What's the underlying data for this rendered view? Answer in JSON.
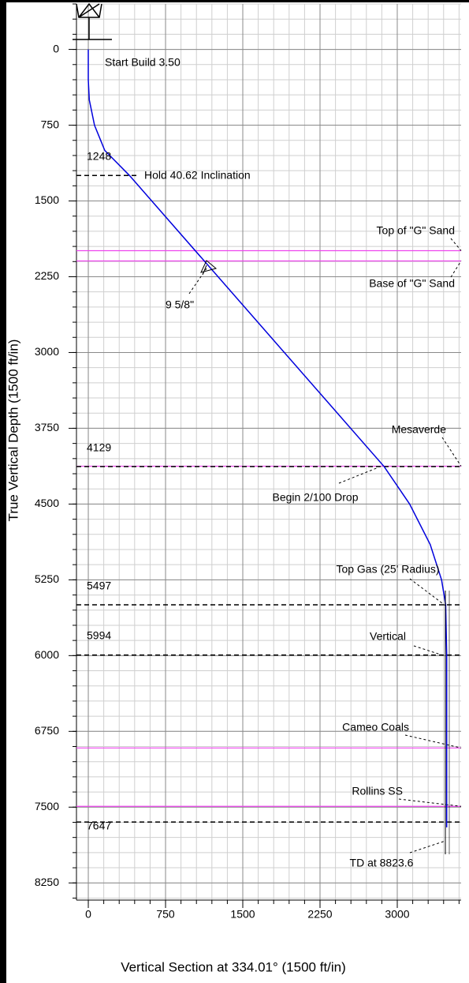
{
  "chart_data": {
    "type": "line",
    "xlabel": "Vertical Section at 334.01° (1500 ft/in)",
    "ylabel": "True Vertical Depth (1500 ft/in)",
    "xlim": [
      -115,
      3620
    ],
    "ylim": [
      -450,
      8420
    ],
    "xticks": [
      0,
      750,
      1500,
      2250,
      3000
    ],
    "yticks": [
      0,
      750,
      1500,
      2250,
      3000,
      3750,
      4500,
      5250,
      6000,
      6750,
      7500,
      8250
    ],
    "y_inverted": true,
    "grid": true,
    "path": {
      "color": "#0000dd",
      "x": [
        0,
        0,
        10,
        60,
        160,
        400,
        2872,
        3120,
        3320,
        3430,
        3470,
        3480,
        3480
      ],
      "y": [
        0,
        300,
        500,
        750,
        1000,
        1248,
        4129,
        4500,
        4900,
        5250,
        5497,
        5994,
        7700
      ]
    },
    "formation_color": "#ee44ee",
    "formations": [
      {
        "name": "Top of \"G\" Sand",
        "tvd": 1992
      },
      {
        "name": "Base of \"G\" Sand",
        "tvd": 2094
      },
      {
        "name": "Mesaverde",
        "tvd": 4125
      },
      {
        "name": "Cameo Coals",
        "tvd": 6914
      },
      {
        "name": "Rollins SS",
        "tvd": 7492
      }
    ],
    "depth_markers": [
      1248,
      4129,
      5497,
      5994,
      7647
    ],
    "annotations": [
      "Start Build 3.50",
      "Hold 40.62 Inclination",
      "9 5/8\"",
      "Begin 2/100 Drop",
      "Top Gas (25' Radius)",
      "Vertical",
      "TD at 8823.6"
    ]
  }
}
